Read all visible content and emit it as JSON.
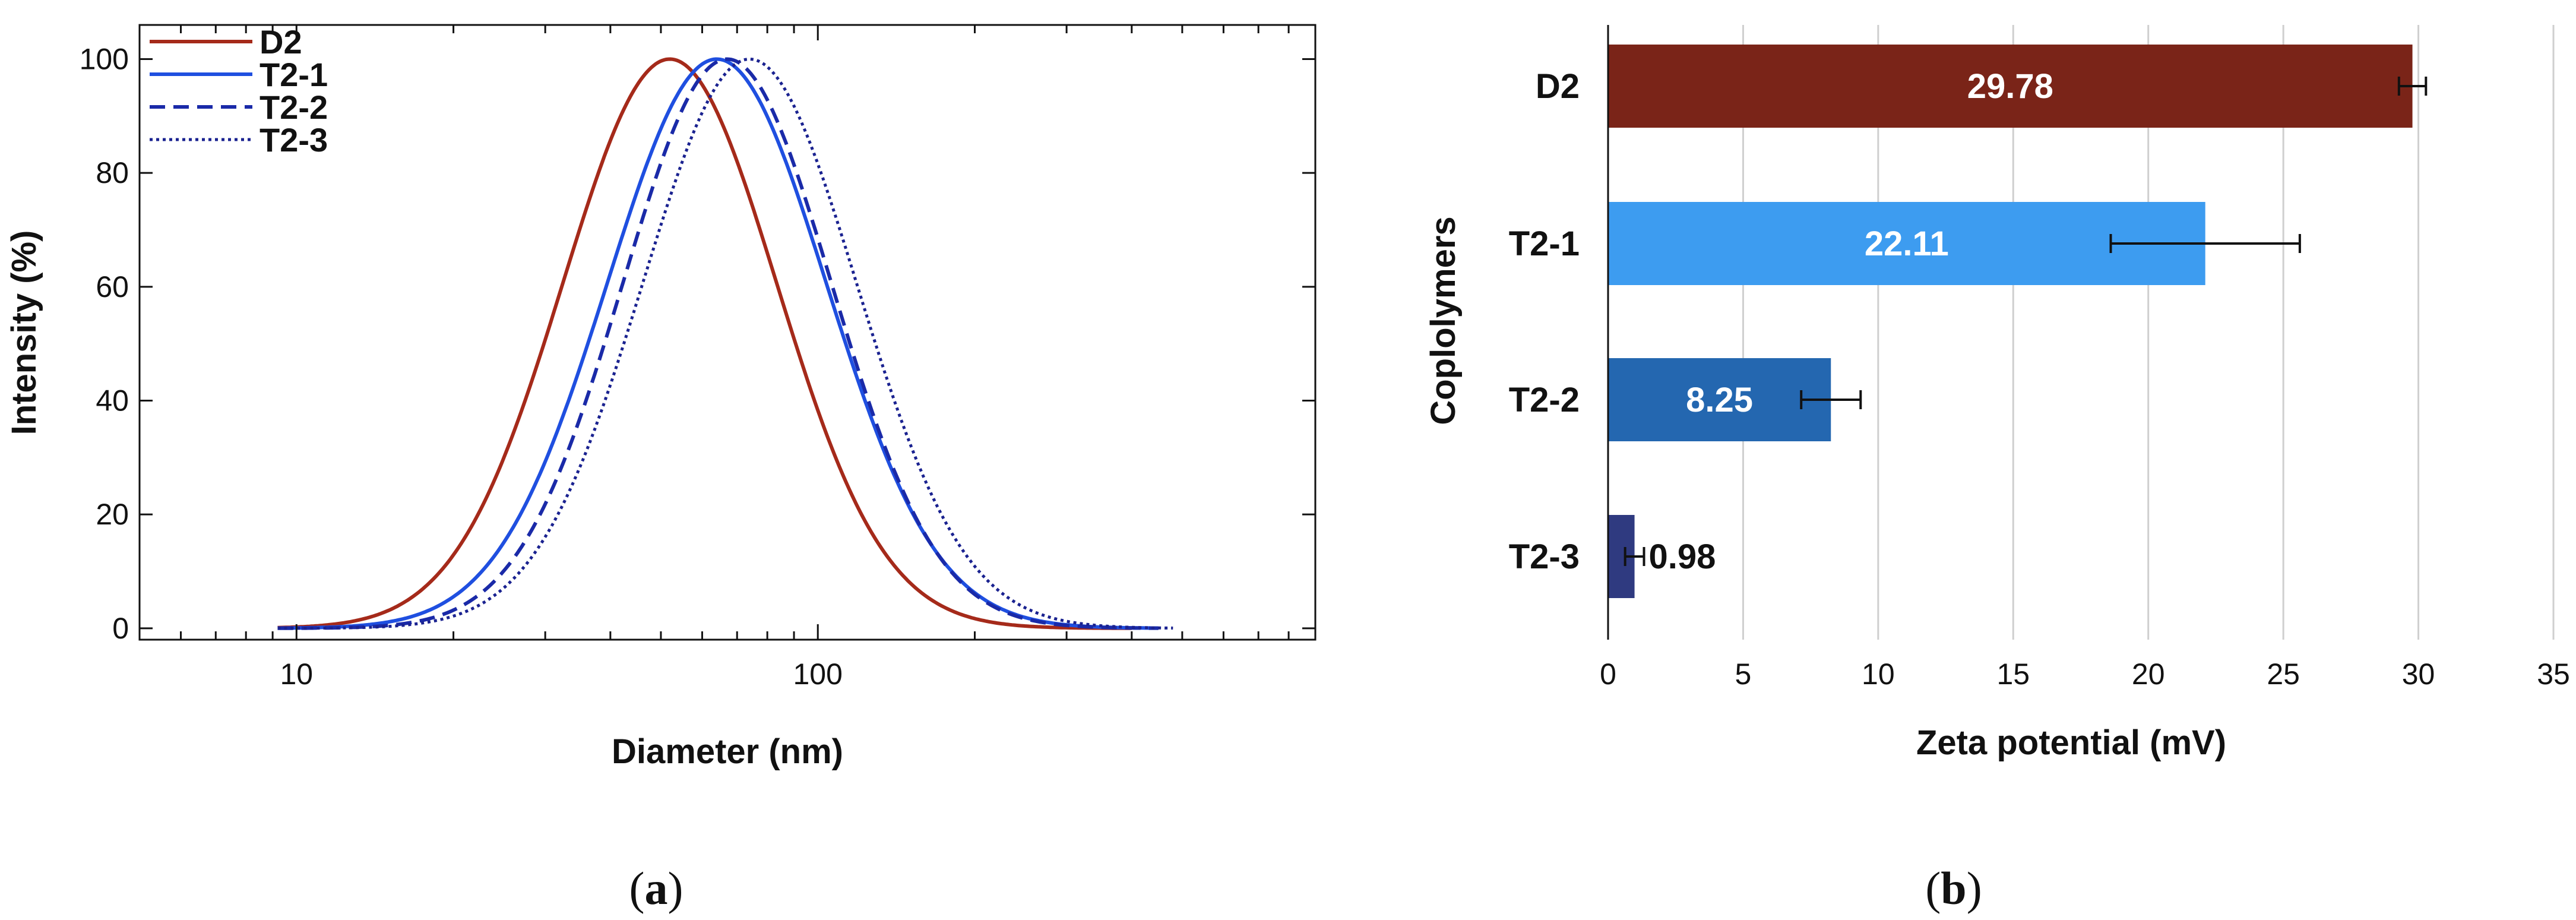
{
  "chart_data": [
    {
      "type": "line",
      "panel_label": "(a)",
      "panel_letter": "a",
      "xlabel": "Diameter (nm)",
      "ylabel": "Intensity (%)",
      "xscale": "log",
      "xlim": [
        5,
        900
      ],
      "ylim": [
        -2,
        106
      ],
      "xticks": [
        10,
        100
      ],
      "yticks": [
        0,
        20,
        40,
        60,
        80,
        100
      ],
      "legend_position": "top-left",
      "series": [
        {
          "name": "D2",
          "color": "#a52a1a",
          "style": "solid",
          "peak": 52,
          "sigma": 0.205,
          "x_range": [
            9.2,
            400
          ]
        },
        {
          "name": "T2-1",
          "color": "#1f4fe0",
          "style": "solid",
          "peak": 64,
          "sigma": 0.21,
          "x_range": [
            9.2,
            450
          ]
        },
        {
          "name": "T2-2",
          "color": "#1a2aa8",
          "style": "dashed",
          "peak": 67,
          "sigma": 0.2,
          "x_range": [
            9.2,
            450
          ]
        },
        {
          "name": "T2-3",
          "color": "#1a2290",
          "style": "dotted",
          "peak": 74,
          "sigma": 0.205,
          "x_range": [
            9.2,
            480
          ]
        }
      ]
    },
    {
      "type": "bar",
      "orientation": "horizontal",
      "panel_label": "(b)",
      "panel_letter": "b",
      "xlabel": "Zeta potential (mV)",
      "ylabel": "Coplolymers",
      "xlim": [
        0,
        35
      ],
      "xticks": [
        0,
        5,
        10,
        15,
        20,
        25,
        30,
        35
      ],
      "grid": "vertical",
      "categories": [
        "D2",
        "T2-1",
        "T2-2",
        "T2-3"
      ],
      "values": [
        29.78,
        22.11,
        8.25,
        0.98
      ],
      "value_labels": [
        "29.78",
        "22.11",
        "8.25",
        "0.98"
      ],
      "errors": [
        0.5,
        3.5,
        1.1,
        0.35
      ],
      "colors": [
        "#7a2418",
        "#3d9cf0",
        "#2467b0",
        "#2f3a80"
      ]
    }
  ]
}
